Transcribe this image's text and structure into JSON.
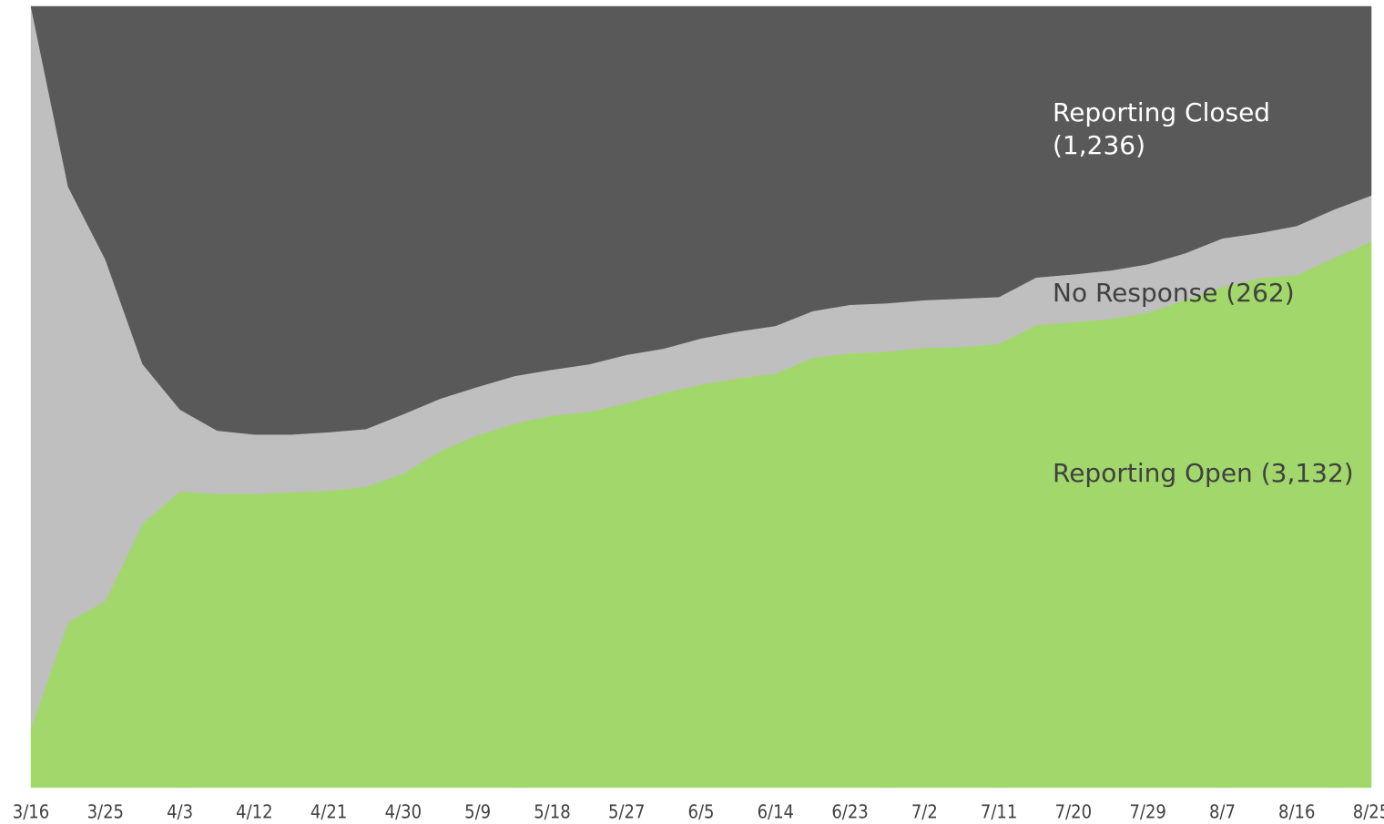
{
  "chart_data": {
    "type": "stacked_area_percent",
    "categories": [
      "3/16",
      null,
      "3/25",
      null,
      "4/3",
      null,
      "4/12",
      null,
      "4/21",
      null,
      "4/30",
      null,
      "5/9",
      null,
      "5/18",
      null,
      "5/27",
      null,
      "6/5",
      null,
      "6/14",
      null,
      "6/23",
      null,
      "7/2",
      null,
      "7/11",
      null,
      "7/20",
      null,
      "7/29",
      null,
      "8/7",
      null,
      "8/16",
      null,
      "8/25"
    ],
    "ylim": [
      0,
      100
    ],
    "series": [
      {
        "label": [
          "Reporting Open (3,132)"
        ],
        "color": "#a2d76c",
        "label_color": "#404040",
        "values": [
          7.6,
          21.2,
          23.9,
          33.8,
          37.9,
          37.6,
          37.6,
          37.8,
          38.0,
          38.5,
          40.2,
          43.1,
          45.1,
          46.6,
          47.6,
          48.1,
          49.2,
          50.5,
          51.6,
          52.4,
          53.0,
          55.0,
          55.6,
          55.8,
          56.3,
          56.4,
          56.8,
          59.2,
          59.6,
          60.0,
          60.8,
          62.4,
          64.1,
          65.2,
          65.6,
          67.8,
          69.9
        ]
      },
      {
        "label": [
          "No Response (262)"
        ],
        "color": "#bfbfbf",
        "label_color": "#404040",
        "values": [
          92.4,
          55.7,
          43.7,
          20.4,
          10.5,
          8.1,
          7.6,
          7.4,
          7.5,
          7.4,
          7.6,
          6.7,
          6.2,
          6.1,
          5.9,
          6.1,
          6.2,
          5.7,
          5.9,
          6.0,
          6.1,
          6.0,
          6.2,
          6.2,
          6.1,
          6.2,
          6.0,
          6.1,
          6.1,
          6.2,
          6.2,
          6.0,
          6.2,
          5.8,
          6.3,
          6.2,
          5.9
        ]
      },
      {
        "label": [
          "Reporting Closed",
          "(1,236)"
        ],
        "color": "#595959",
        "label_color": "#ffffff",
        "values": [
          0,
          23.1,
          32.4,
          45.8,
          51.6,
          54.3,
          54.8,
          54.8,
          54.5,
          54.1,
          52.2,
          50.2,
          48.7,
          47.3,
          46.5,
          45.8,
          44.6,
          43.8,
          42.5,
          41.6,
          40.9,
          39.0,
          38.2,
          38.0,
          37.6,
          37.4,
          37.2,
          34.7,
          34.3,
          33.8,
          33.0,
          31.6,
          29.7,
          29.0,
          28.1,
          26.0,
          24.2
        ]
      }
    ]
  }
}
